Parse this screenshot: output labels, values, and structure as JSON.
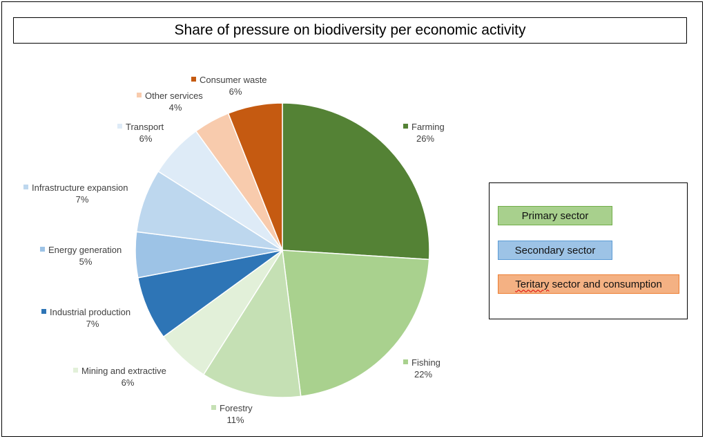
{
  "chart_data": {
    "type": "pie",
    "title": "Share of pressure on biodiversity per economic activity",
    "slices": [
      {
        "label": "Farming",
        "value": 26,
        "pct": "26%",
        "color": "#548235"
      },
      {
        "label": "Fishing",
        "value": 22,
        "pct": "22%",
        "color": "#a9d18e"
      },
      {
        "label": "Forestry",
        "value": 11,
        "pct": "11%",
        "color": "#c5e0b4"
      },
      {
        "label": "Mining and extractive",
        "value": 6,
        "pct": "6%",
        "color": "#e2f0d9"
      },
      {
        "label": "Industrial production",
        "value": 7,
        "pct": "7%",
        "color": "#2e75b6"
      },
      {
        "label": "Energy generation",
        "value": 5,
        "pct": "5%",
        "color": "#9dc3e6"
      },
      {
        "label": "Infrastructure expansion",
        "value": 7,
        "pct": "7%",
        "color": "#bdd7ee"
      },
      {
        "label": "Transport",
        "value": 6,
        "pct": "6%",
        "color": "#deebf7"
      },
      {
        "label": "Other services",
        "value": 4,
        "pct": "4%",
        "color": "#f8cbad"
      },
      {
        "label": "Consumer waste",
        "value": 6,
        "pct": "6%",
        "color": "#c55a11"
      }
    ]
  },
  "legend": {
    "primary": "Primary sector",
    "secondary": "Secondary sector",
    "tertiary_word": "Teritary",
    "tertiary_rest": " sector and consumption",
    "colors": {
      "primary": "#a8d08d",
      "secondary": "#9dc3e6",
      "tertiary": "#f4b183"
    }
  }
}
